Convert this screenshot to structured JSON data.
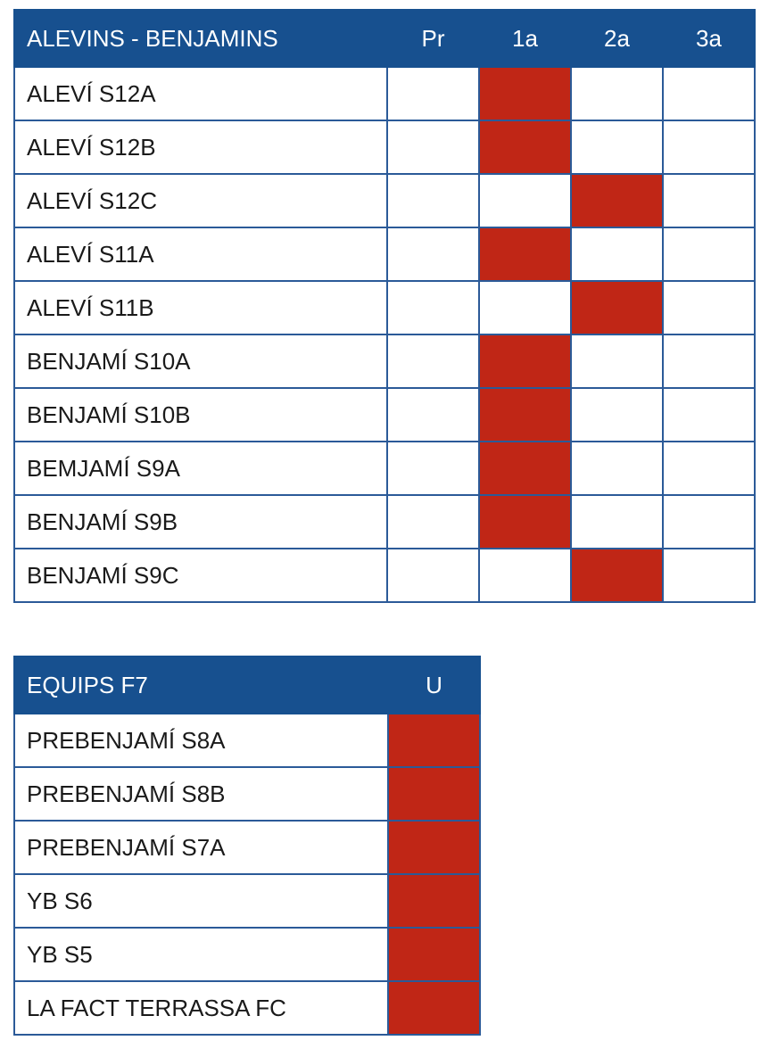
{
  "table_1": {
    "header": "ALEVINS - BENJAMINS",
    "columns": [
      "Pr",
      "1a",
      "2a",
      "3a"
    ],
    "rows": [
      {
        "name": "ALEVÍ S12A",
        "marked": "1a"
      },
      {
        "name": "ALEVÍ S12B",
        "marked": "1a"
      },
      {
        "name": "ALEVÍ S12C",
        "marked": "2a"
      },
      {
        "name": "ALEVÍ S11A",
        "marked": "1a"
      },
      {
        "name": "ALEVÍ S11B",
        "marked": "2a"
      },
      {
        "name": "BENJAMÍ S10A",
        "marked": "1a"
      },
      {
        "name": "BENJAMÍ S10B",
        "marked": "1a"
      },
      {
        "name": "BEMJAMÍ S9A",
        "marked": "1a"
      },
      {
        "name": "BENJAMÍ S9B",
        "marked": "1a"
      },
      {
        "name": "BENJAMÍ S9C",
        "marked": "2a"
      }
    ]
  },
  "table_2": {
    "header": "EQUIPS F7",
    "columns": [
      "U"
    ],
    "rows": [
      {
        "name": "PREBENJAMÍ S8A",
        "marked": "U"
      },
      {
        "name": "PREBENJAMÍ S8B",
        "marked": "U"
      },
      {
        "name": "PREBENJAMÍ S7A",
        "marked": "U"
      },
      {
        "name": "YB S6",
        "marked": "U"
      },
      {
        "name": "YB S5",
        "marked": "U"
      },
      {
        "name": "LA FACT TERRASSA FC",
        "marked": "U"
      }
    ]
  },
  "colors": {
    "header_bg": "#17508f",
    "marked_cell": "#c02616",
    "grid_line": "#2b5a98"
  }
}
